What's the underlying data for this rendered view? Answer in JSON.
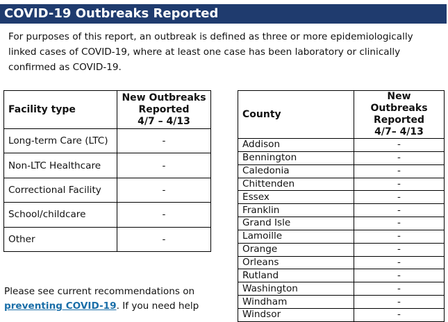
{
  "header": {
    "title": "COVID-19 Outbreaks Reported"
  },
  "intro": "For purposes of this report, an outbreak is defined as three or more epidemiologically linked cases of COVID-19, where at least one case has been laboratory or clinically confirmed as COVID-19.",
  "facility_table": {
    "headers": [
      "Facility type",
      [
        "New Outbreaks",
        "Reported",
        "4/7 – 4/13"
      ]
    ],
    "rows": [
      [
        "Long-term Care (LTC)",
        "-"
      ],
      [
        "Non-LTC Healthcare",
        "-"
      ],
      [
        "Correctional Facility",
        "-"
      ],
      [
        "School/childcare",
        "-"
      ],
      [
        "Other",
        "-"
      ]
    ]
  },
  "county_table": {
    "headers": [
      "County",
      [
        "New Outbreaks",
        "Reported",
        "4/7– 4/13"
      ]
    ],
    "rows": [
      [
        "Addison",
        "-"
      ],
      [
        "Bennington",
        "-"
      ],
      [
        "Caledonia",
        "-"
      ],
      [
        "Chittenden",
        "-"
      ],
      [
        "Essex",
        "-"
      ],
      [
        "Franklin",
        "-"
      ],
      [
        "Grand Isle",
        "-"
      ],
      [
        "Lamoille",
        "-"
      ],
      [
        "Orange",
        "-"
      ],
      [
        "Orleans",
        "-"
      ],
      [
        "Rutland",
        "-"
      ],
      [
        "Washington",
        "-"
      ],
      [
        "Windham",
        "-"
      ],
      [
        "Windsor",
        "-"
      ]
    ]
  },
  "footer": {
    "text_before": "Please see current recommendations on",
    "link": "preventing COVID-19",
    "text_after": ". If you need help"
  }
}
